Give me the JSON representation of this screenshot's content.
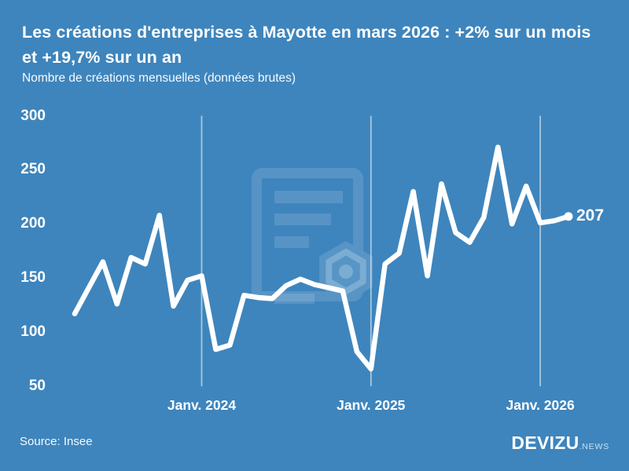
{
  "header": {
    "title": "Les créations d'entreprises à Mayotte en mars 2026 : +2% sur un mois et +19,7% sur un an",
    "subtitle": "Nombre de créations mensuelles (données brutes)"
  },
  "footer": {
    "source": "Source: Insee",
    "brand": "DEVIZU",
    "brand_suffix": ".NEWS"
  },
  "colors": {
    "background": "#3e85bd",
    "line": "#ffffff",
    "text": "#ffffff",
    "gridline": "rgba(255,255,255,0.55)",
    "watermark": "rgba(255,255,255,0.13)"
  },
  "chart_data": {
    "type": "line",
    "title": "Les créations d'entreprises à Mayotte en mars 2026 : +2% sur un mois et +19,7% sur un an",
    "subtitle": "Nombre de créations mensuelles (données brutes)",
    "x": [
      "2023-04",
      "2023-05",
      "2023-06",
      "2023-07",
      "2023-08",
      "2023-09",
      "2023-10",
      "2023-11",
      "2023-12",
      "2024-01",
      "2024-02",
      "2024-03",
      "2024-04",
      "2024-05",
      "2024-06",
      "2024-07",
      "2024-08",
      "2024-09",
      "2024-10",
      "2024-11",
      "2024-12",
      "2025-01",
      "2025-02",
      "2025-03",
      "2025-04",
      "2025-05",
      "2025-06",
      "2025-07",
      "2025-08",
      "2025-09",
      "2025-10",
      "2025-11",
      "2025-12",
      "2026-01",
      "2026-02",
      "2026-03"
    ],
    "values": [
      117,
      141,
      165,
      126,
      169,
      163,
      208,
      124,
      148,
      152,
      84,
      88,
      134,
      132,
      131,
      143,
      149,
      144,
      141,
      138,
      82,
      66,
      163,
      173,
      230,
      152,
      237,
      192,
      183,
      206,
      271,
      200,
      235,
      201,
      203,
      207
    ],
    "end_label": "207",
    "x_ticks": [
      {
        "label": "Janv. 2024",
        "index": 9
      },
      {
        "label": "Janv. 2025",
        "index": 21
      },
      {
        "label": "Janv. 2026",
        "index": 33
      }
    ],
    "y_ticks": [
      50,
      100,
      150,
      200,
      250,
      300
    ],
    "ylim": [
      50,
      300
    ],
    "grid": "vertical-only",
    "legend": "none"
  }
}
